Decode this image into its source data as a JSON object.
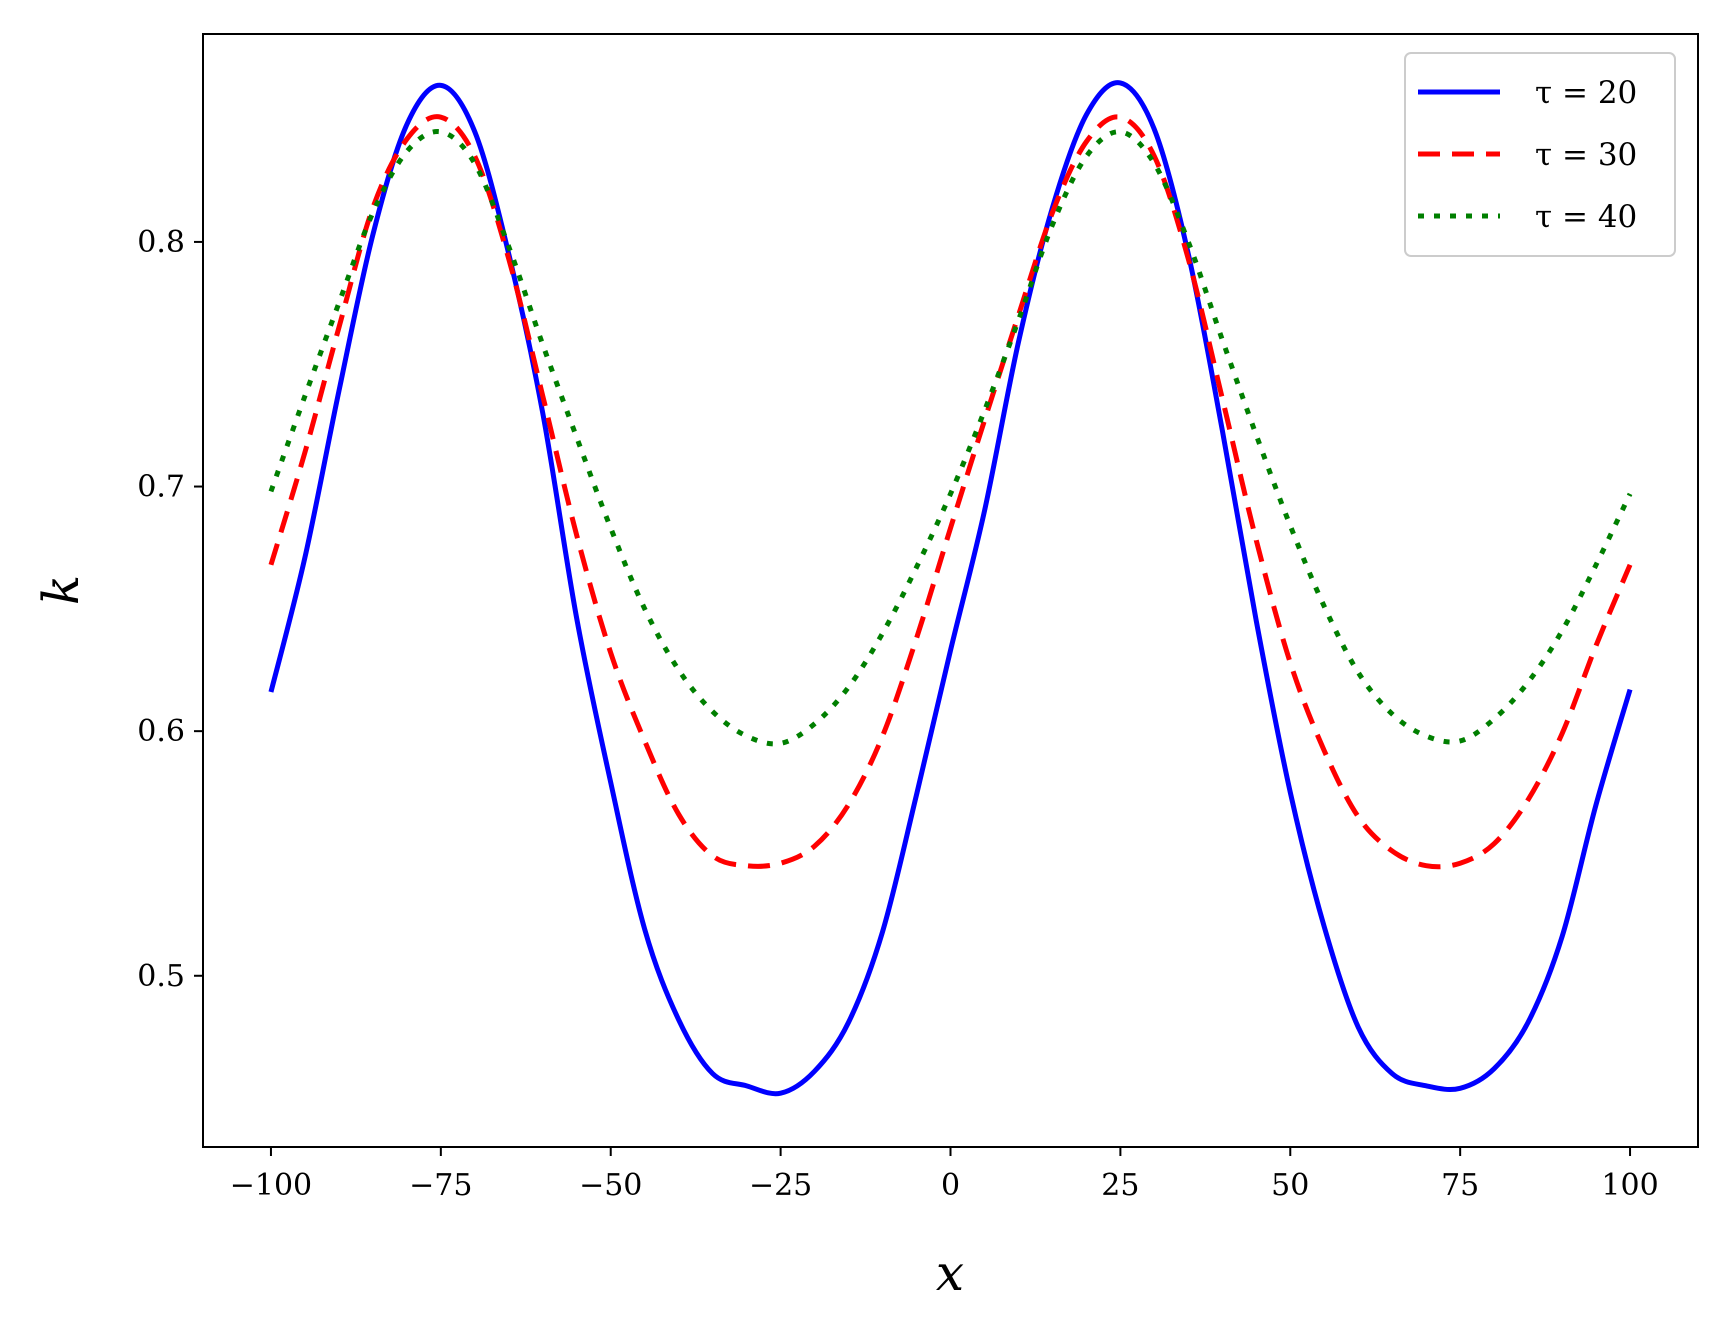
{
  "chart_data": {
    "type": "line",
    "xlabel": "x",
    "ylabel": "k",
    "xlim": [
      -110,
      110
    ],
    "ylim": [
      0.43,
      0.885
    ],
    "x_ticks": [
      -100,
      -75,
      -50,
      -25,
      0,
      25,
      50,
      75,
      100
    ],
    "x_tick_labels": [
      "−100",
      "−75",
      "−50",
      "−25",
      "0",
      "25",
      "50",
      "75",
      "100"
    ],
    "y_ticks": [
      0.5,
      0.6,
      0.7,
      0.8
    ],
    "y_tick_labels": [
      "0.5",
      "0.6",
      "0.7",
      "0.8"
    ],
    "grid": false,
    "legend_position": "top-right",
    "x": [
      -100,
      -95,
      -90,
      -85,
      -80,
      -75,
      -70,
      -65,
      -60,
      -55,
      -50,
      -45,
      -40,
      -35,
      -30,
      -25,
      -20,
      -15,
      -10,
      -5,
      0,
      5,
      10,
      15,
      20,
      25,
      30,
      35,
      40,
      45,
      50,
      55,
      60,
      65,
      70,
      75,
      80,
      85,
      90,
      95,
      100
    ],
    "series": [
      {
        "name": "τ = 20",
        "color": "#0000ff",
        "dash": "solid",
        "values": [
          0.616,
          0.671,
          0.739,
          0.803,
          0.848,
          0.864,
          0.845,
          0.795,
          0.73,
          0.646,
          0.579,
          0.519,
          0.482,
          0.46,
          0.455,
          0.452,
          0.461,
          0.481,
          0.518,
          0.574,
          0.633,
          0.69,
          0.759,
          0.814,
          0.852,
          0.865,
          0.846,
          0.795,
          0.723,
          0.645,
          0.575,
          0.52,
          0.479,
          0.46,
          0.455,
          0.454,
          0.462,
          0.481,
          0.516,
          0.57,
          0.617
        ]
      },
      {
        "name": "τ = 30",
        "color": "#ff0000",
        "dash": "dashed",
        "values": [
          0.668,
          0.714,
          0.765,
          0.814,
          0.842,
          0.851,
          0.835,
          0.793,
          0.737,
          0.68,
          0.632,
          0.596,
          0.566,
          0.549,
          0.545,
          0.546,
          0.553,
          0.57,
          0.598,
          0.638,
          0.683,
          0.727,
          0.77,
          0.812,
          0.841,
          0.851,
          0.835,
          0.793,
          0.736,
          0.678,
          0.628,
          0.592,
          0.565,
          0.551,
          0.545,
          0.546,
          0.554,
          0.572,
          0.599,
          0.635,
          0.668
        ]
      },
      {
        "name": "τ = 40",
        "color": "#007f00",
        "dash": "dotted",
        "values": [
          0.698,
          0.737,
          0.775,
          0.812,
          0.837,
          0.845,
          0.832,
          0.798,
          0.758,
          0.72,
          0.683,
          0.65,
          0.625,
          0.608,
          0.598,
          0.595,
          0.603,
          0.618,
          0.64,
          0.667,
          0.697,
          0.731,
          0.768,
          0.807,
          0.835,
          0.845,
          0.832,
          0.8,
          0.76,
          0.721,
          0.684,
          0.651,
          0.624,
          0.607,
          0.598,
          0.596,
          0.605,
          0.62,
          0.641,
          0.668,
          0.697
        ]
      }
    ]
  }
}
